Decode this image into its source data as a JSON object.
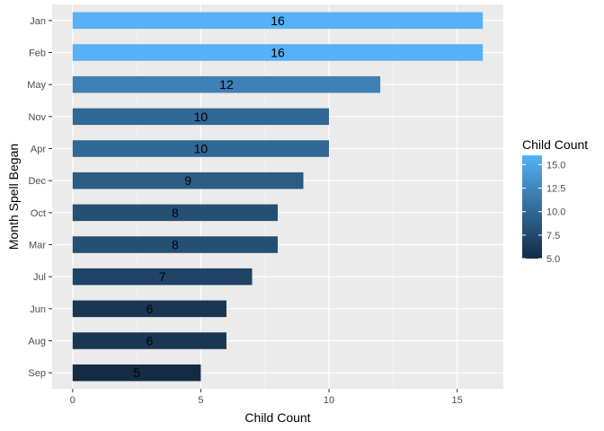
{
  "chart_data": {
    "type": "bar",
    "orientation": "horizontal",
    "categories": [
      "Jan",
      "Feb",
      "May",
      "Nov",
      "Apr",
      "Dec",
      "Oct",
      "Mar",
      "Jul",
      "Jun",
      "Aug",
      "Sep"
    ],
    "values": [
      16,
      16,
      12,
      10,
      10,
      9,
      8,
      8,
      7,
      6,
      6,
      5
    ],
    "xlabel": "Child Count",
    "ylabel": "Month Spell Began",
    "xlim": [
      -0.8,
      16.8
    ],
    "xticks": [
      0,
      5,
      10,
      15
    ],
    "grid": true,
    "legend": {
      "title": "Child Count",
      "placement": "right",
      "ticks": [
        5.0,
        7.5,
        10.0,
        12.5,
        15.0
      ],
      "tick_labels": [
        "5.0",
        "7.5",
        "10.0",
        "12.5",
        "15.0"
      ],
      "range": [
        5,
        16
      ],
      "color_low": "#132B43",
      "color_high": "#56B1F7"
    },
    "colors": {
      "panel_background": "#EBEBEB",
      "grid_major": "#FFFFFF",
      "tick_text": "#4D4D4D",
      "axis_title": "#000000"
    }
  }
}
